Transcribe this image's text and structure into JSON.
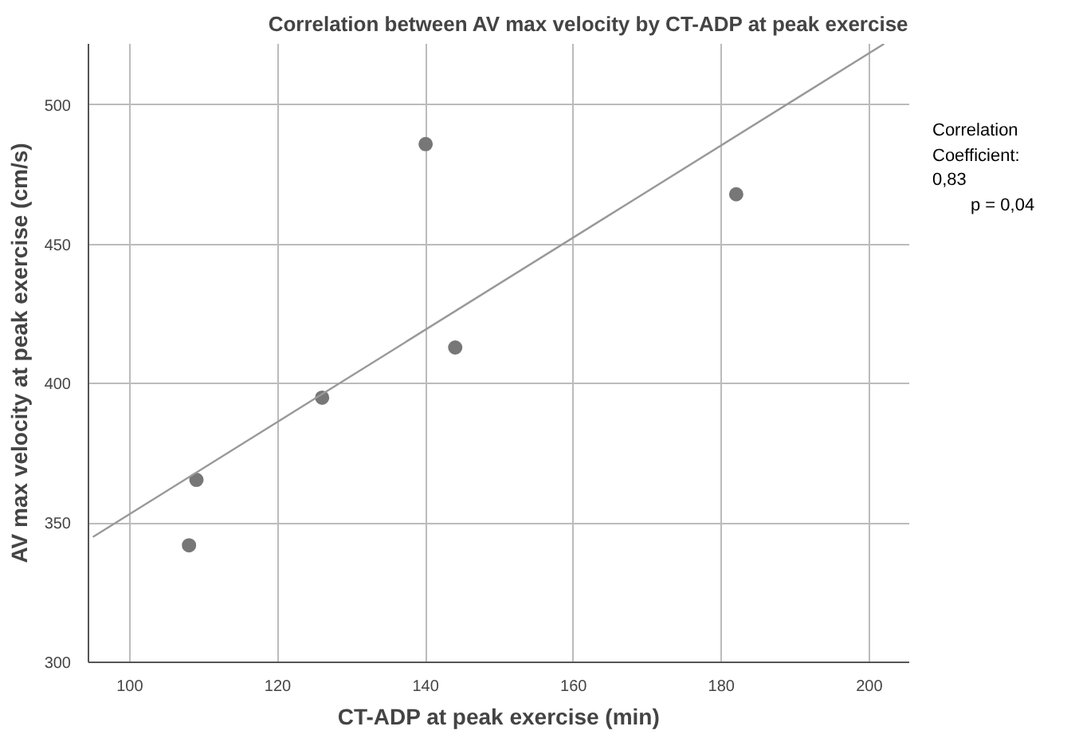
{
  "chart_data": {
    "type": "scatter",
    "title": "Correlation between AV max velocity by CT-ADP at peak exercise",
    "xlabel": "CT-ADP at peak exercise (min)",
    "ylabel": "AV max velocity at peak exercise (cm/s)",
    "xlim": [
      94.4,
      205.4
    ],
    "ylim": [
      300,
      522
    ],
    "xticks": [
      100,
      120,
      140,
      160,
      180,
      200
    ],
    "yticks": [
      300,
      350,
      400,
      450,
      500
    ],
    "grid": true,
    "marker": "circle",
    "series": [
      {
        "color": "#777777",
        "x": [
          108,
          109,
          126,
          140,
          144,
          182
        ],
        "values": [
          342,
          365.5,
          395,
          486,
          413,
          468
        ]
      },
      {
        "type": "line",
        "color": "#999999",
        "x": [
          95,
          202
        ],
        "values": [
          345,
          522
        ],
        "marker": "none",
        "line_style": "solid"
      }
    ],
    "annotations": [
      "Correlation Coefficient: 0,83",
      "p = 0,04"
    ]
  }
}
